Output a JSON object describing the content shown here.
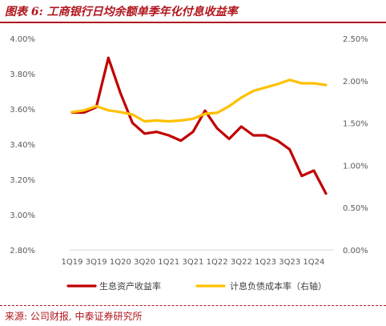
{
  "figure": {
    "title": "图表 6: 工商银行日均余额单季年化付息收益率",
    "source": "来源: 公司财报, 中泰证券研究所"
  },
  "colors": {
    "series1": "#c00000",
    "series2": "#ffc000",
    "title": "#b0161d",
    "axis": "#d9d9d9",
    "tick_text": "#595959"
  },
  "chart_data": {
    "type": "line",
    "title": "",
    "xlabel": "",
    "ylabel": "",
    "y2label": "",
    "x": [
      "1Q19",
      "2Q19",
      "3Q19",
      "4Q19",
      "1Q20",
      "2Q20",
      "3Q20",
      "4Q20",
      "1Q21",
      "2Q21",
      "3Q21",
      "4Q21",
      "1Q22",
      "2Q22",
      "3Q22",
      "4Q22",
      "1Q23",
      "2Q23",
      "3Q23",
      "4Q23",
      "1Q24",
      "2Q24"
    ],
    "x_tick_labels": [
      "1Q19",
      "3Q19",
      "1Q20",
      "3Q20",
      "1Q21",
      "3Q21",
      "1Q22",
      "3Q22",
      "1Q23",
      "3Q23",
      "1Q24"
    ],
    "ylim": [
      2.8,
      4.0
    ],
    "y_ticks": [
      "2.80%",
      "3.00%",
      "3.20%",
      "3.40%",
      "3.60%",
      "3.80%",
      "4.00%"
    ],
    "y2lim": [
      0.0,
      2.5
    ],
    "y2_ticks": [
      "0.00%",
      "0.50%",
      "1.00%",
      "1.50%",
      "2.00%",
      "2.50%"
    ],
    "series": [
      {
        "name": "生息资产收益率",
        "axis": "left",
        "color": "#c00000",
        "values": [
          3.58,
          3.58,
          3.61,
          3.89,
          3.69,
          3.52,
          3.46,
          3.47,
          3.45,
          3.42,
          3.47,
          3.59,
          3.49,
          3.43,
          3.5,
          3.45,
          3.45,
          3.42,
          3.37,
          3.22,
          3.25,
          3.12
        ]
      },
      {
        "name": "计息负债成本率（右轴）",
        "axis": "right",
        "color": "#ffc000",
        "values": [
          1.63,
          1.65,
          1.7,
          1.65,
          1.63,
          1.6,
          1.52,
          1.53,
          1.52,
          1.53,
          1.55,
          1.61,
          1.62,
          1.7,
          1.8,
          1.88,
          1.92,
          1.96,
          2.01,
          1.97,
          1.97,
          1.95
        ]
      }
    ],
    "grid": false,
    "legend_position": "bottom"
  }
}
